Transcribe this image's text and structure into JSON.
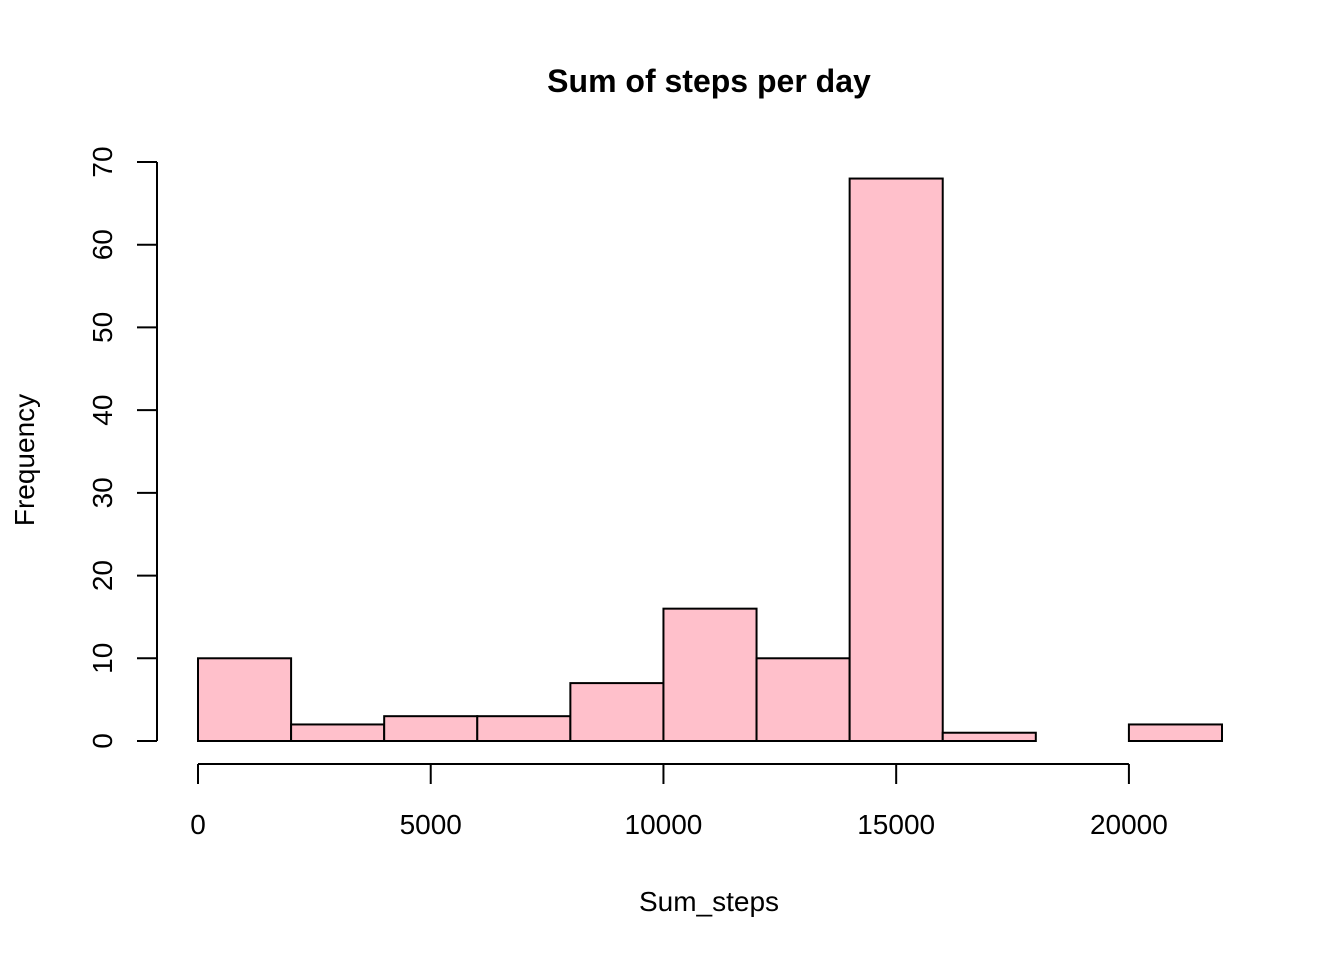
{
  "chart_data": {
    "type": "bar",
    "title": "Sum of steps per day",
    "xlabel": "Sum_steps",
    "ylabel": "Frequency",
    "bar_color": "#FFC0CB",
    "bins": [
      {
        "from": 0,
        "to": 2000,
        "count": 10
      },
      {
        "from": 2000,
        "to": 4000,
        "count": 2
      },
      {
        "from": 4000,
        "to": 6000,
        "count": 3
      },
      {
        "from": 6000,
        "to": 8000,
        "count": 3
      },
      {
        "from": 8000,
        "to": 10000,
        "count": 7
      },
      {
        "from": 10000,
        "to": 12000,
        "count": 16
      },
      {
        "from": 12000,
        "to": 14000,
        "count": 10
      },
      {
        "from": 14000,
        "to": 16000,
        "count": 68
      },
      {
        "from": 16000,
        "to": 18000,
        "count": 1
      },
      {
        "from": 18000,
        "to": 20000,
        "count": 0
      },
      {
        "from": 20000,
        "to": 22000,
        "count": 2
      }
    ],
    "xlim": [
      0,
      22000
    ],
    "ylim": [
      0,
      70
    ],
    "x_ticks": [
      0,
      5000,
      10000,
      15000,
      20000
    ],
    "y_ticks": [
      0,
      10,
      20,
      30,
      40,
      50,
      60,
      70
    ],
    "grid": false
  }
}
